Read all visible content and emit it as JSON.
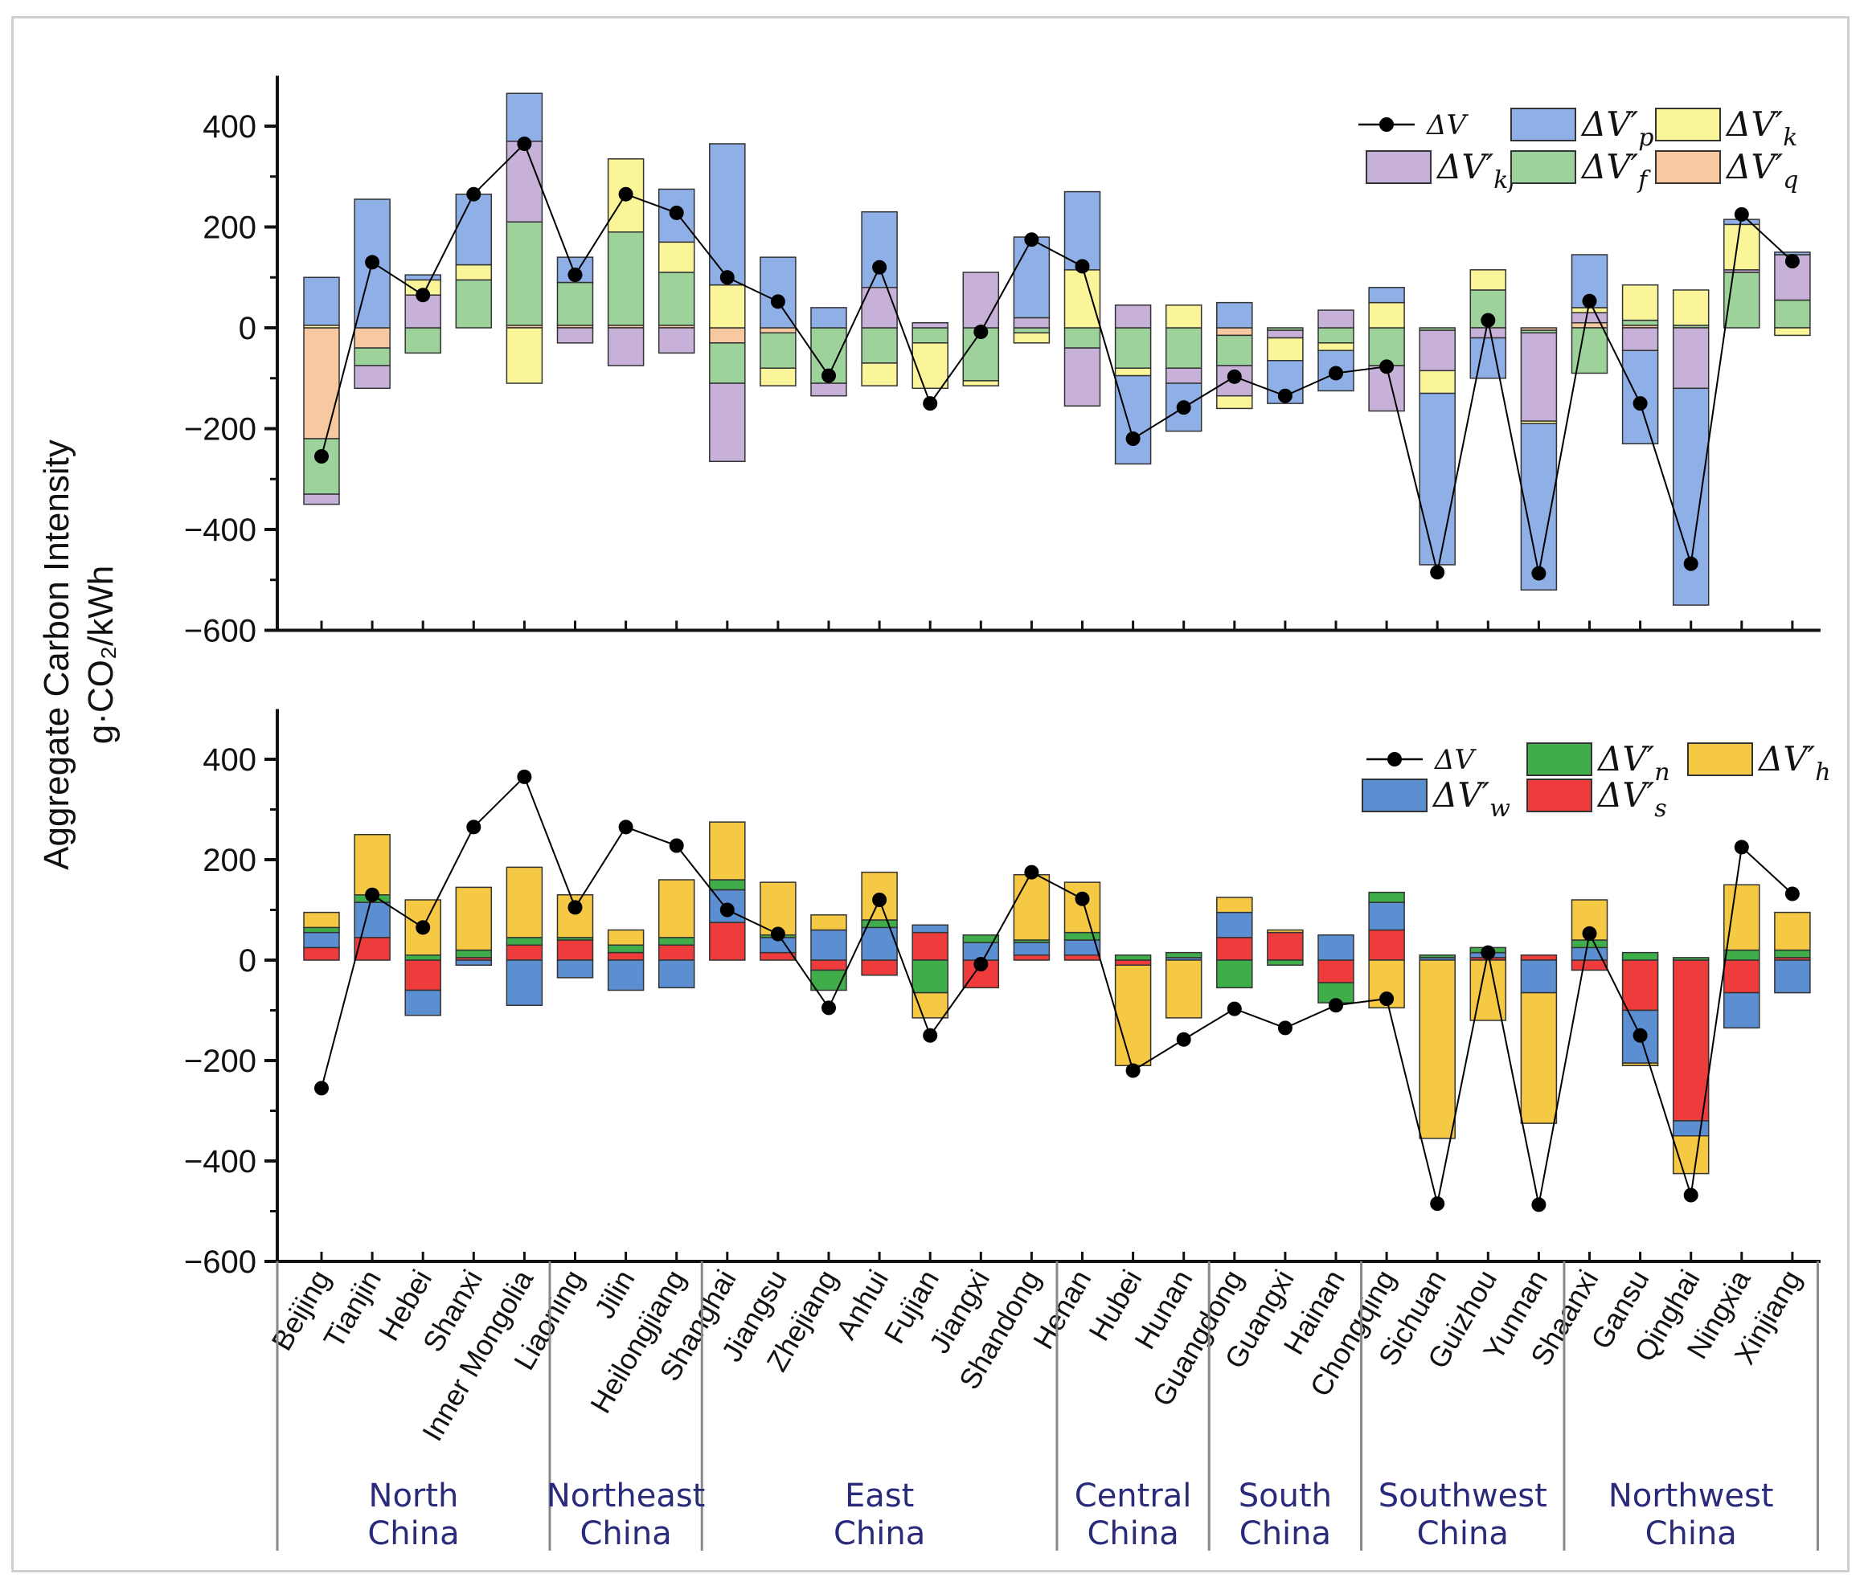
{
  "chart_data": {
    "type": "bar",
    "stacked": true,
    "ylabel_line1": "Aggregate Carbon Intensity",
    "ylabel_line2": "g·CO₂/kWh",
    "ylim": [
      -600,
      500
    ],
    "yticks": [
      -600,
      -400,
      -200,
      0,
      200,
      400
    ],
    "ytick_labels": [
      "−600",
      "−400",
      "−200",
      "0",
      "200",
      "400"
    ],
    "categories": [
      "Beijing",
      "Tianjin",
      "Hebei",
      "Shanxi",
      "Inner Mongolia",
      "Liaoning",
      "Jilin",
      "Heilongjiang",
      "Shanghai",
      "Jiangsu",
      "Zhejiang",
      "Anhui",
      "Fujian",
      "Jiangxi",
      "Shandong",
      "Henan",
      "Hubei",
      "Hunan",
      "Guangdong",
      "Guangxi",
      "Hainan",
      "Chongqing",
      "Sichuan",
      "Guizhou",
      "Yunnan",
      "Shaanxi",
      "Gansu",
      "Qinghai",
      "Ningxia",
      "Xinjiang"
    ],
    "regions": [
      {
        "line1": "North",
        "line2": "China",
        "start": 0,
        "end": 4
      },
      {
        "line1": "Northeast",
        "line2": "China",
        "start": 5,
        "end": 7
      },
      {
        "line1": "East",
        "line2": "China",
        "start": 8,
        "end": 14
      },
      {
        "line1": "Central",
        "line2": "China",
        "start": 15,
        "end": 17
      },
      {
        "line1": "South",
        "line2": "China",
        "start": 18,
        "end": 20
      },
      {
        "line1": "Southwest",
        "line2": "China",
        "start": 21,
        "end": 24
      },
      {
        "line1": "Northwest",
        "line2": "China",
        "start": 25,
        "end": 29
      }
    ],
    "delta_v": [
      -255,
      130,
      65,
      265,
      365,
      105,
      265,
      228,
      100,
      52,
      -95,
      120,
      -150,
      -8,
      175,
      122,
      -220,
      -158,
      -97,
      -135,
      -90,
      -77,
      -485,
      15,
      -487,
      53,
      -150,
      -468,
      225,
      132
    ],
    "panels": [
      {
        "legend": [
          {
            "type": "line",
            "label": "ΔV"
          },
          {
            "type": "box",
            "label": "ΔV′",
            "sub": "p",
            "color": "#8fb0e6"
          },
          {
            "type": "box",
            "label": "ΔV′",
            "sub": "k",
            "color": "#fbf59a"
          },
          {
            "type": "box",
            "label": "ΔV′",
            "sub": "kf",
            "color": "#c7b1d8"
          },
          {
            "type": "box",
            "label": "ΔV′",
            "sub": "f",
            "color": "#9dd39a"
          },
          {
            "type": "box",
            "label": "ΔV′",
            "sub": "q",
            "color": "#f8c8a0"
          }
        ],
        "series": [
          {
            "name": "q",
            "color": "#f8c8a0",
            "values": [
              -220,
              -40,
              0,
              0,
              5,
              5,
              5,
              5,
              -30,
              -10,
              0,
              0,
              0,
              0,
              0,
              0,
              0,
              0,
              -15,
              0,
              0,
              0,
              0,
              0,
              -5,
              10,
              5,
              0,
              0,
              0
            ]
          },
          {
            "name": "f",
            "color": "#9dd39a",
            "values": [
              -110,
              -35,
              -50,
              95,
              205,
              85,
              185,
              105,
              -80,
              -70,
              -110,
              -70,
              -30,
              -105,
              -10,
              -40,
              -80,
              -80,
              -60,
              -5,
              -30,
              -75,
              -5,
              75,
              -5,
              -90,
              10,
              5,
              110,
              55
            ]
          },
          {
            "name": "kf",
            "color": "#c7b1d8",
            "values": [
              -20,
              -45,
              65,
              0,
              160,
              -30,
              -75,
              -50,
              -155,
              0,
              -25,
              80,
              10,
              110,
              20,
              -115,
              45,
              -30,
              -60,
              -15,
              35,
              -90,
              -80,
              -20,
              -175,
              20,
              -45,
              -120,
              5,
              90
            ]
          },
          {
            "name": "k",
            "color": "#fbf59a",
            "values": [
              5,
              0,
              30,
              30,
              -110,
              0,
              145,
              60,
              85,
              -35,
              0,
              -45,
              -90,
              -10,
              -20,
              115,
              -15,
              45,
              -25,
              -45,
              -15,
              50,
              -45,
              40,
              -5,
              10,
              70,
              70,
              90,
              -15
            ]
          },
          {
            "name": "p",
            "color": "#8fb0e6",
            "values": [
              95,
              255,
              10,
              140,
              95,
              50,
              0,
              105,
              280,
              140,
              40,
              150,
              0,
              0,
              160,
              155,
              -175,
              -95,
              50,
              -85,
              -80,
              30,
              -340,
              -80,
              -330,
              105,
              -185,
              -430,
              10,
              5
            ]
          }
        ]
      },
      {
        "legend": [
          {
            "type": "line",
            "label": "ΔV"
          },
          {
            "type": "box",
            "label": "ΔV′",
            "sub": "n",
            "color": "#3fae4a"
          },
          {
            "type": "box",
            "label": "ΔV′",
            "sub": "h",
            "color": "#f6c945"
          },
          {
            "type": "box",
            "label": "ΔV′",
            "sub": "w",
            "color": "#5b8fd1"
          },
          {
            "type": "box",
            "label": "ΔV′",
            "sub": "s",
            "color": "#ee3b3b"
          }
        ],
        "series": [
          {
            "name": "s",
            "color": "#ee3b3b",
            "values": [
              25,
              45,
              -60,
              5,
              30,
              40,
              15,
              30,
              75,
              15,
              -20,
              -30,
              55,
              -55,
              10,
              10,
              -10,
              0,
              45,
              55,
              -45,
              60,
              0,
              5,
              10,
              -20,
              -100,
              -320,
              -65,
              5
            ]
          },
          {
            "name": "w",
            "color": "#5b8fd1",
            "values": [
              30,
              70,
              -50,
              -10,
              -90,
              -35,
              -60,
              -55,
              65,
              30,
              60,
              65,
              15,
              35,
              25,
              30,
              0,
              5,
              50,
              0,
              50,
              55,
              5,
              10,
              -65,
              25,
              -105,
              -30,
              -70,
              -65
            ]
          },
          {
            "name": "n",
            "color": "#3fae4a",
            "values": [
              10,
              15,
              10,
              15,
              15,
              5,
              15,
              15,
              20,
              5,
              -40,
              15,
              -65,
              15,
              5,
              15,
              10,
              10,
              -55,
              -10,
              -40,
              20,
              5,
              10,
              0,
              15,
              15,
              5,
              20,
              15
            ]
          },
          {
            "name": "h",
            "color": "#f6c945",
            "values": [
              30,
              120,
              110,
              125,
              140,
              85,
              30,
              115,
              115,
              105,
              30,
              95,
              -50,
              0,
              130,
              100,
              -200,
              -115,
              30,
              5,
              0,
              -95,
              -355,
              -120,
              -260,
              80,
              -5,
              -75,
              130,
              75
            ]
          }
        ]
      }
    ]
  }
}
